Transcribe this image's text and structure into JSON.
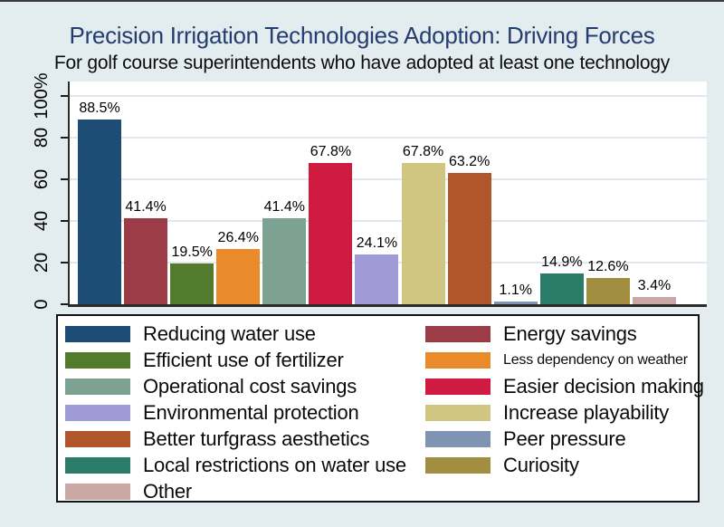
{
  "figure": {
    "background_color": "#e3edf0",
    "title_color": "#253d6e"
  },
  "chart_data": {
    "type": "bar",
    "title": "Precision Irrigation Technologies Adoption: Driving Forces",
    "subtitle": "For golf course superintendents who have adopted at least one technology",
    "xlabel": "",
    "ylabel": "",
    "ylim": [
      0,
      100
    ],
    "grid": "horizontal",
    "legend_position": "bottom-box",
    "legend_columns": 2,
    "y_ticks": [
      0,
      20,
      40,
      60,
      80,
      100
    ],
    "y_tick_labels": [
      "0",
      "20",
      "40",
      "60",
      "80",
      "100%"
    ],
    "categories": [
      "Reducing water use",
      "Energy savings",
      "Efficient use of fertilizer",
      "Less dependency on weather",
      "Operational cost savings",
      "Easier decision making",
      "Environmental protection",
      "Increase playability",
      "Better turfgrass aesthetics",
      "Peer pressure",
      "Local restrictions on water use",
      "Curiosity",
      "Other"
    ],
    "values": [
      88.5,
      41.4,
      19.5,
      26.4,
      41.4,
      67.8,
      24.1,
      67.8,
      63.2,
      1.1,
      14.9,
      12.6,
      3.4
    ],
    "bar_labels": [
      "88.5%",
      "41.4%",
      "19.5%",
      "26.4%",
      "41.4%",
      "67.8%",
      "24.1%",
      "67.8%",
      "63.2%",
      "1.1%",
      "14.9%",
      "12.6%",
      "3.4%"
    ],
    "colors": [
      "#1d4d74",
      "#9c3c46",
      "#527b2e",
      "#e98a2b",
      "#7da294",
      "#cf1b41",
      "#a09bd6",
      "#d0c682",
      "#b0562a",
      "#7f94b2",
      "#2c7c6a",
      "#a28e40",
      "#c8a7a4"
    ],
    "small_legend_labels": [
      "Less dependency on weather"
    ]
  }
}
